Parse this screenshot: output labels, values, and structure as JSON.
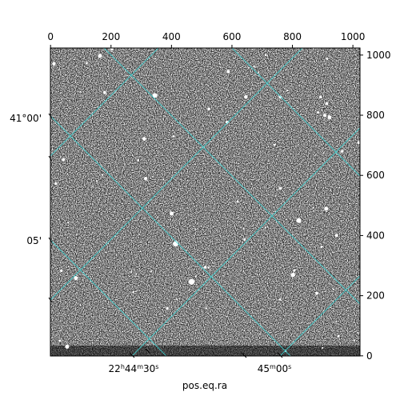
{
  "chart_data": {
    "type": "image",
    "xlabel": "pos.eq.ra",
    "xlim": [
      -0.5,
      1023.5
    ],
    "xticks": [
      0,
      200,
      400,
      600,
      800,
      1000
    ],
    "ylim": [
      -0.5,
      1023.5
    ],
    "yticks": [
      0,
      200,
      400,
      600,
      800,
      1000
    ],
    "ra_labels": [
      [
        "22",
        "h",
        "44",
        "m",
        "30",
        "s"
      ],
      [
        "45",
        "m",
        "00",
        "s"
      ]
    ],
    "dec_labels": [
      "41°00'",
      "05'"
    ],
    "grid_color": "#3fd0d0"
  }
}
